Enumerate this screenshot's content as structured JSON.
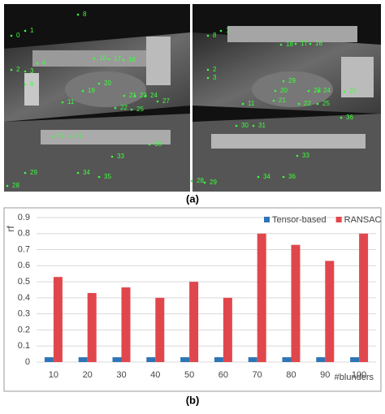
{
  "figure_a": {
    "label": "(a)",
    "left_points": [
      "0",
      "1",
      "8",
      "2",
      "3",
      "4",
      "6",
      "18",
      "17",
      "16",
      "19",
      "20",
      "11",
      "21",
      "22",
      "23",
      "24",
      "25",
      "27",
      "30",
      "31",
      "33",
      "36",
      "29",
      "28",
      "34",
      "35"
    ],
    "right_points": [
      "8",
      "1",
      "2",
      "3",
      "18",
      "17",
      "16",
      "29",
      "20",
      "11",
      "21",
      "22",
      "23",
      "24",
      "25",
      "27",
      "30",
      "31",
      "33",
      "36",
      "28",
      "29",
      "34",
      "36"
    ]
  },
  "figure_b": {
    "label": "(b)"
  },
  "chart_data": {
    "type": "bar",
    "categories": [
      "10",
      "20",
      "30",
      "40",
      "50",
      "60",
      "70",
      "80",
      "90",
      "100"
    ],
    "series": [
      {
        "name": "Tensor-based",
        "color": "#2e75b6",
        "values": [
          0.03,
          0.03,
          0.03,
          0.03,
          0.03,
          0.03,
          0.03,
          0.03,
          0.03,
          0.03
        ]
      },
      {
        "name": "RANSAC",
        "color": "#e0474c",
        "values": [
          0.53,
          0.43,
          0.465,
          0.4,
          0.5,
          0.4,
          0.8,
          0.73,
          0.63,
          0.8
        ]
      }
    ],
    "ylim": [
      0,
      0.9
    ],
    "yticks": [
      0,
      0.1,
      0.2,
      0.3,
      0.4,
      0.5,
      0.6,
      0.7,
      0.8,
      0.9
    ],
    "y_label": "rf",
    "x_label": "#blunders",
    "grid": true,
    "legend": "top-right"
  }
}
